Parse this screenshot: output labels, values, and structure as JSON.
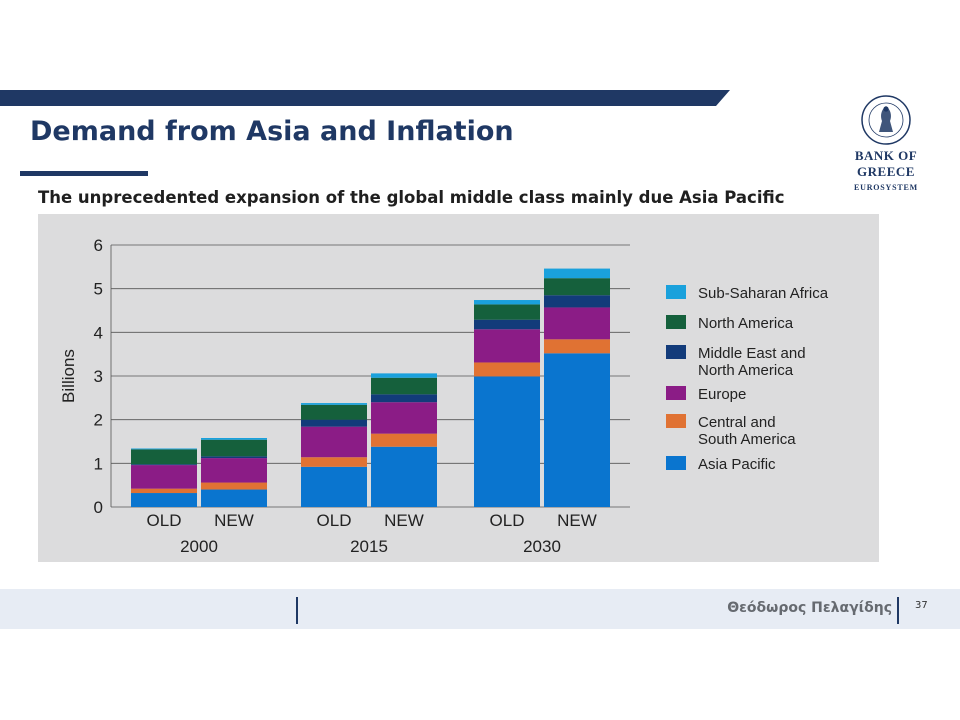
{
  "slide": {
    "title": "Demand from Asia and Inflation",
    "subtitle": "The unprecedented expansion of the global middle class mainly due Asia Pacific",
    "logo": {
      "name": "BANK OF GREECE",
      "sub": "EUROSYSTEM",
      "seal_text": "ΤΡΑΠΕΖΑ ΤΗΣ ΕΛΛΑΔΟΣ 1928"
    },
    "footer_author": "Θεόδωρος Πελαγίδης",
    "page_number": "37",
    "colors": {
      "navy": "#1f3864",
      "panel": "#dcdcdd"
    }
  },
  "chart_data": {
    "type": "bar",
    "stacked": true,
    "ylabel": "Billions",
    "ylim": [
      0,
      6
    ],
    "yticks": [
      0,
      1,
      2,
      3,
      4,
      5,
      6
    ],
    "grid": true,
    "legend_position": "right",
    "groups": [
      {
        "label": "2000",
        "categories": [
          "OLD",
          "NEW"
        ]
      },
      {
        "label": "2015",
        "categories": [
          "OLD",
          "NEW"
        ]
      },
      {
        "label": "2030",
        "categories": [
          "OLD",
          "NEW"
        ]
      }
    ],
    "categories": [
      "2000 OLD",
      "2000 NEW",
      "2015 OLD",
      "2015 NEW",
      "2030 OLD",
      "2030 NEW"
    ],
    "series": [
      {
        "name": "Asia Pacific",
        "color": "#0a75cf",
        "values": [
          0.32,
          0.4,
          0.92,
          1.38,
          2.99,
          3.52
        ]
      },
      {
        "name": "Central and South America",
        "color": "#e07233",
        "values": [
          0.1,
          0.16,
          0.22,
          0.3,
          0.32,
          0.32
        ]
      },
      {
        "name": "Europe",
        "color": "#8b1c86",
        "values": [
          0.54,
          0.56,
          0.7,
          0.72,
          0.76,
          0.73
        ]
      },
      {
        "name": "Middle East and North America",
        "color": "#123b7a",
        "values": [
          0.02,
          0.04,
          0.16,
          0.18,
          0.22,
          0.28
        ]
      },
      {
        "name": "North America",
        "color": "#15603c",
        "values": [
          0.34,
          0.38,
          0.34,
          0.38,
          0.35,
          0.39
        ]
      },
      {
        "name": "Sub-Saharan Africa",
        "color": "#1aa1dc",
        "values": [
          0.02,
          0.04,
          0.04,
          0.1,
          0.1,
          0.22
        ]
      }
    ]
  }
}
